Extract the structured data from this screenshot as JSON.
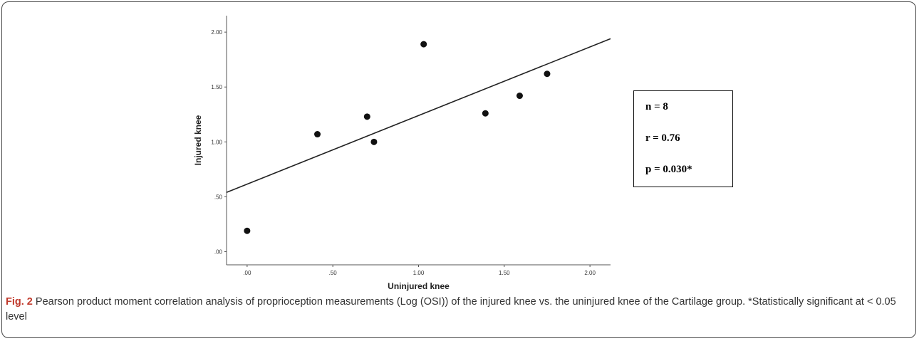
{
  "chart_data": {
    "type": "scatter",
    "title": "",
    "xlabel": "Uninjured knee",
    "ylabel": "Injured knee",
    "xlim": [
      -0.12,
      2.12
    ],
    "ylim": [
      -0.12,
      2.15
    ],
    "xticks": [
      0.0,
      0.5,
      1.0,
      1.5,
      2.0
    ],
    "xtick_labels": [
      ".00",
      ".50",
      "1.00",
      "1.50",
      "2.00"
    ],
    "yticks": [
      0.0,
      0.5,
      1.0,
      1.5,
      2.0
    ],
    "ytick_labels": [
      ".00",
      ".50",
      "1.00",
      "1.50",
      "2.00"
    ],
    "points": [
      {
        "x": 0.0,
        "y": 0.19
      },
      {
        "x": 0.41,
        "y": 1.07
      },
      {
        "x": 0.7,
        "y": 1.23
      },
      {
        "x": 0.74,
        "y": 1.0
      },
      {
        "x": 1.03,
        "y": 1.89
      },
      {
        "x": 1.39,
        "y": 1.26
      },
      {
        "x": 1.59,
        "y": 1.42
      },
      {
        "x": 1.75,
        "y": 1.62
      }
    ],
    "fit_line": {
      "x": [
        -0.12,
        2.12
      ],
      "y": [
        0.54,
        1.94
      ]
    },
    "grid": false,
    "legend": "none"
  },
  "stats": {
    "n": "n = 8",
    "r": "r = 0.76",
    "p": "p = 0.030*"
  },
  "caption": {
    "fig_label": "Fig. 2",
    "text": " Pearson product moment correlation analysis of proprioception measurements (Log (OSI)) of the injured knee vs. the uninjured knee of the Cartilage group. *Statistically significant at < 0.05 level"
  }
}
